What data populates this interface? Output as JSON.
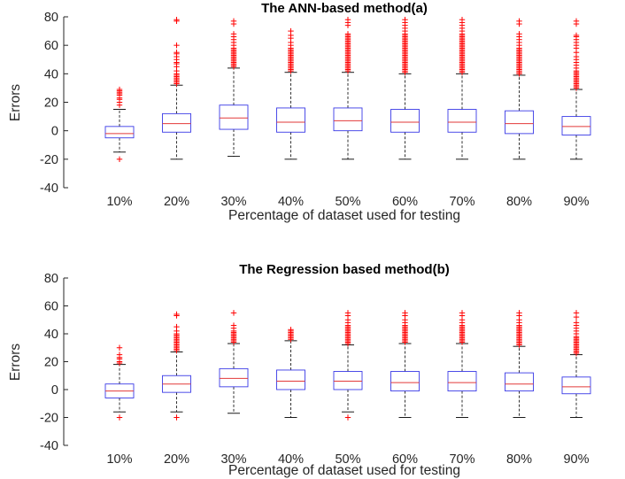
{
  "chart_data": [
    {
      "type": "box",
      "title": "The ANN-based method(a)",
      "xlabel": "Percentage of dataset used for testing",
      "ylabel": "Errors",
      "ylim": [
        -40,
        80
      ],
      "yticks": [
        "-40",
        "-20",
        "0",
        "20",
        "40",
        "60",
        "80"
      ],
      "categories": [
        "10%",
        "20%",
        "30%",
        "40%",
        "50%",
        "60%",
        "70%",
        "80%",
        "90%"
      ],
      "colors": {
        "box": "#3a3ae6",
        "median": "#e23a3a",
        "whisker": "#000000",
        "outlier": "#ff0000"
      },
      "boxes": [
        {
          "q1": -5,
          "median": -2,
          "q3": 3,
          "whislo": -15,
          "whishi": 15,
          "fliers_low": [
            -20
          ],
          "fliers_high": [
            18,
            20,
            22,
            23,
            25,
            26,
            27,
            28,
            29
          ]
        },
        {
          "q1": -1,
          "median": 5,
          "q3": 12,
          "whislo": -20,
          "whishi": 32,
          "fliers_low": [],
          "fliers_high": [
            33,
            34,
            35,
            36,
            37,
            38,
            39,
            40,
            42,
            45,
            47,
            48,
            50,
            52,
            54,
            55,
            60,
            77,
            78
          ]
        },
        {
          "q1": 1,
          "median": 9,
          "q3": 18,
          "whislo": -18,
          "whishi": 44,
          "fliers_low": [],
          "fliers_high": [
            45,
            46,
            47,
            48,
            49,
            50,
            51,
            52,
            53,
            54,
            55,
            56,
            57,
            58,
            60,
            62,
            64,
            66,
            68,
            75,
            77
          ]
        },
        {
          "q1": -1,
          "median": 6,
          "q3": 16,
          "whislo": -20,
          "whishi": 41,
          "fliers_low": [],
          "fliers_high": [
            42,
            43,
            44,
            45,
            46,
            47,
            48,
            49,
            50,
            51,
            52,
            53,
            54,
            55,
            56,
            57,
            58,
            60,
            62,
            65,
            67,
            70
          ]
        },
        {
          "q1": 0,
          "median": 7,
          "q3": 16,
          "whislo": -20,
          "whishi": 41,
          "fliers_low": [],
          "fliers_high": [
            42,
            43,
            44,
            45,
            46,
            47,
            48,
            49,
            50,
            51,
            52,
            53,
            54,
            55,
            56,
            57,
            58,
            59,
            60,
            61,
            62,
            63,
            64,
            65,
            66,
            67,
            68,
            74,
            76,
            78
          ]
        },
        {
          "q1": -1,
          "median": 6,
          "q3": 15,
          "whislo": -20,
          "whishi": 40,
          "fliers_low": [],
          "fliers_high": [
            41,
            42,
            43,
            44,
            45,
            46,
            47,
            48,
            49,
            50,
            51,
            52,
            53,
            54,
            55,
            56,
            57,
            58,
            59,
            60,
            61,
            62,
            63,
            64,
            65,
            66,
            67,
            68,
            70,
            72,
            74,
            76,
            78
          ]
        },
        {
          "q1": -1,
          "median": 6,
          "q3": 15,
          "whislo": -20,
          "whishi": 40,
          "fliers_low": [],
          "fliers_high": [
            41,
            42,
            43,
            44,
            45,
            46,
            47,
            48,
            49,
            50,
            51,
            52,
            53,
            54,
            55,
            56,
            57,
            58,
            59,
            60,
            61,
            62,
            63,
            64,
            65,
            66,
            67,
            68,
            70,
            72,
            74,
            76,
            78
          ]
        },
        {
          "q1": -2,
          "median": 5,
          "q3": 14,
          "whislo": -20,
          "whishi": 39,
          "fliers_low": [],
          "fliers_high": [
            40,
            41,
            42,
            43,
            44,
            45,
            46,
            47,
            48,
            49,
            50,
            51,
            52,
            53,
            54,
            55,
            56,
            57,
            58,
            60,
            62,
            64,
            66,
            68,
            75,
            77
          ]
        },
        {
          "q1": -3,
          "median": 3,
          "q3": 10,
          "whislo": -20,
          "whishi": 29,
          "fliers_low": [],
          "fliers_high": [
            30,
            31,
            32,
            33,
            34,
            35,
            36,
            37,
            38,
            39,
            40,
            41,
            42,
            44,
            46,
            48,
            50,
            52,
            55,
            58,
            60,
            62,
            64,
            66,
            67,
            75,
            77
          ]
        }
      ]
    },
    {
      "type": "box",
      "title": "The Regression based method(b)",
      "xlabel": "Percentage of dataset used for testing",
      "ylabel": "Errors",
      "ylim": [
        -40,
        80
      ],
      "yticks": [
        "-40",
        "-20",
        "0",
        "20",
        "40",
        "60",
        "80"
      ],
      "categories": [
        "10%",
        "20%",
        "30%",
        "40%",
        "50%",
        "60%",
        "70%",
        "80%",
        "90%"
      ],
      "colors": {
        "box": "#3a3ae6",
        "median": "#e23a3a",
        "whisker": "#000000",
        "outlier": "#ff0000"
      },
      "boxes": [
        {
          "q1": -6,
          "median": -1,
          "q3": 4,
          "whislo": -16,
          "whishi": 18,
          "fliers_low": [
            -20
          ],
          "fliers_high": [
            19,
            20,
            22,
            23,
            25,
            30
          ]
        },
        {
          "q1": -2,
          "median": 4,
          "q3": 10,
          "whislo": -16,
          "whishi": 27,
          "fliers_low": [
            -20
          ],
          "fliers_high": [
            28,
            29,
            30,
            31,
            32,
            33,
            34,
            35,
            36,
            37,
            38,
            39,
            40,
            42,
            45,
            53,
            54
          ]
        },
        {
          "q1": 2,
          "median": 8,
          "q3": 15,
          "whislo": -17,
          "whishi": 33,
          "fliers_low": [],
          "fliers_high": [
            34,
            35,
            36,
            37,
            38,
            39,
            40,
            41,
            42,
            44,
            46,
            55
          ]
        },
        {
          "q1": 0,
          "median": 6,
          "q3": 14,
          "whislo": -20,
          "whishi": 35,
          "fliers_low": [],
          "fliers_high": [
            36,
            37,
            38,
            39,
            40,
            41,
            42,
            43
          ]
        },
        {
          "q1": 0,
          "median": 6,
          "q3": 13,
          "whislo": -16,
          "whishi": 32,
          "fliers_low": [
            -20
          ],
          "fliers_high": [
            33,
            34,
            35,
            36,
            37,
            38,
            39,
            40,
            41,
            42,
            43,
            44,
            45,
            46,
            48,
            50,
            53,
            55
          ]
        },
        {
          "q1": -1,
          "median": 5,
          "q3": 13,
          "whislo": -20,
          "whishi": 33,
          "fliers_low": [],
          "fliers_high": [
            34,
            35,
            36,
            37,
            38,
            39,
            40,
            41,
            42,
            43,
            44,
            45,
            46,
            48,
            50,
            53,
            55
          ]
        },
        {
          "q1": -1,
          "median": 5,
          "q3": 13,
          "whislo": -20,
          "whishi": 33,
          "fliers_low": [],
          "fliers_high": [
            34,
            35,
            36,
            37,
            38,
            39,
            40,
            41,
            42,
            43,
            44,
            45,
            46,
            48,
            50,
            53,
            55
          ]
        },
        {
          "q1": -1,
          "median": 4,
          "q3": 12,
          "whislo": -20,
          "whishi": 31,
          "fliers_low": [],
          "fliers_high": [
            32,
            33,
            34,
            35,
            36,
            37,
            38,
            39,
            40,
            41,
            42,
            43,
            44,
            45,
            46,
            48,
            50,
            53,
            55
          ]
        },
        {
          "q1": -3,
          "median": 2,
          "q3": 9,
          "whislo": -20,
          "whishi": 25,
          "fliers_low": [],
          "fliers_high": [
            26,
            27,
            28,
            29,
            30,
            31,
            32,
            33,
            34,
            35,
            36,
            37,
            38,
            40,
            42,
            44,
            46,
            48,
            52,
            55
          ]
        }
      ]
    }
  ]
}
